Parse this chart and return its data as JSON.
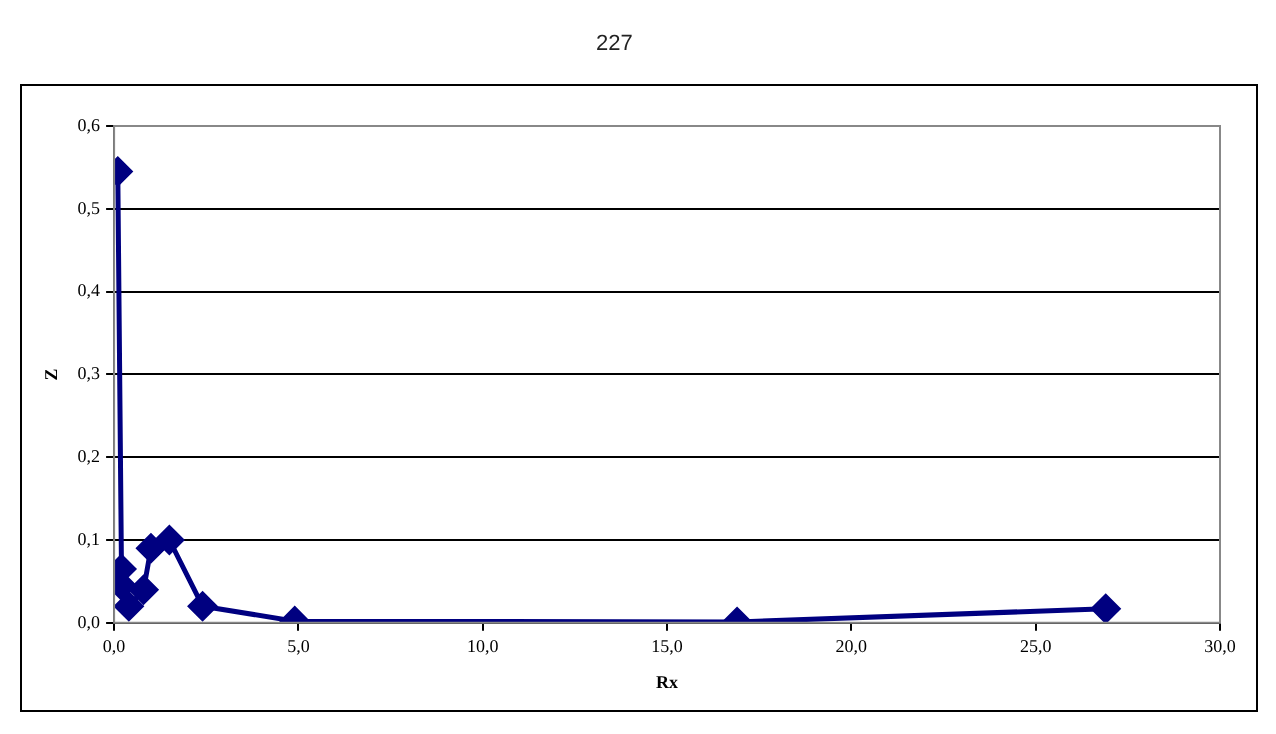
{
  "chart_data": {
    "type": "line",
    "xlabel": "Rx",
    "ylabel": "Z",
    "annotations": [
      "227"
    ],
    "x": [
      0.1,
      0.2,
      0.2,
      0.4,
      0.8,
      1.0,
      1.5,
      2.4,
      4.9,
      16.9,
      26.9
    ],
    "series": [
      {
        "color": "#000080",
        "values": [
          0.545,
          0.065,
          0.045,
          0.02,
          0.04,
          0.09,
          0.1,
          0.02,
          0.002,
          0.001,
          0.017
        ]
      }
    ],
    "xlim": [
      0,
      30
    ],
    "xticks": [
      {
        "value": 0,
        "label": "0,0"
      },
      {
        "value": 5,
        "label": "5,0"
      },
      {
        "value": 10,
        "label": "10,0"
      },
      {
        "value": 15,
        "label": "15,0"
      },
      {
        "value": 20,
        "label": "20,0"
      },
      {
        "value": 25,
        "label": "25,0"
      },
      {
        "value": 30,
        "label": "30,0"
      }
    ],
    "ylim": [
      0,
      0.6
    ],
    "yticks": [
      {
        "value": 0,
        "label": "0,0"
      },
      {
        "value": 0.1,
        "label": "0,1"
      },
      {
        "value": 0.2,
        "label": "0,2"
      },
      {
        "value": 0.3,
        "label": "0,3"
      },
      {
        "value": 0.4,
        "label": "0,4"
      },
      {
        "value": 0.5,
        "label": "0,5"
      },
      {
        "value": 0.6,
        "label": "0,6"
      }
    ],
    "grid": "y",
    "legend": false,
    "marker": "diamond",
    "line_style": "solid"
  }
}
